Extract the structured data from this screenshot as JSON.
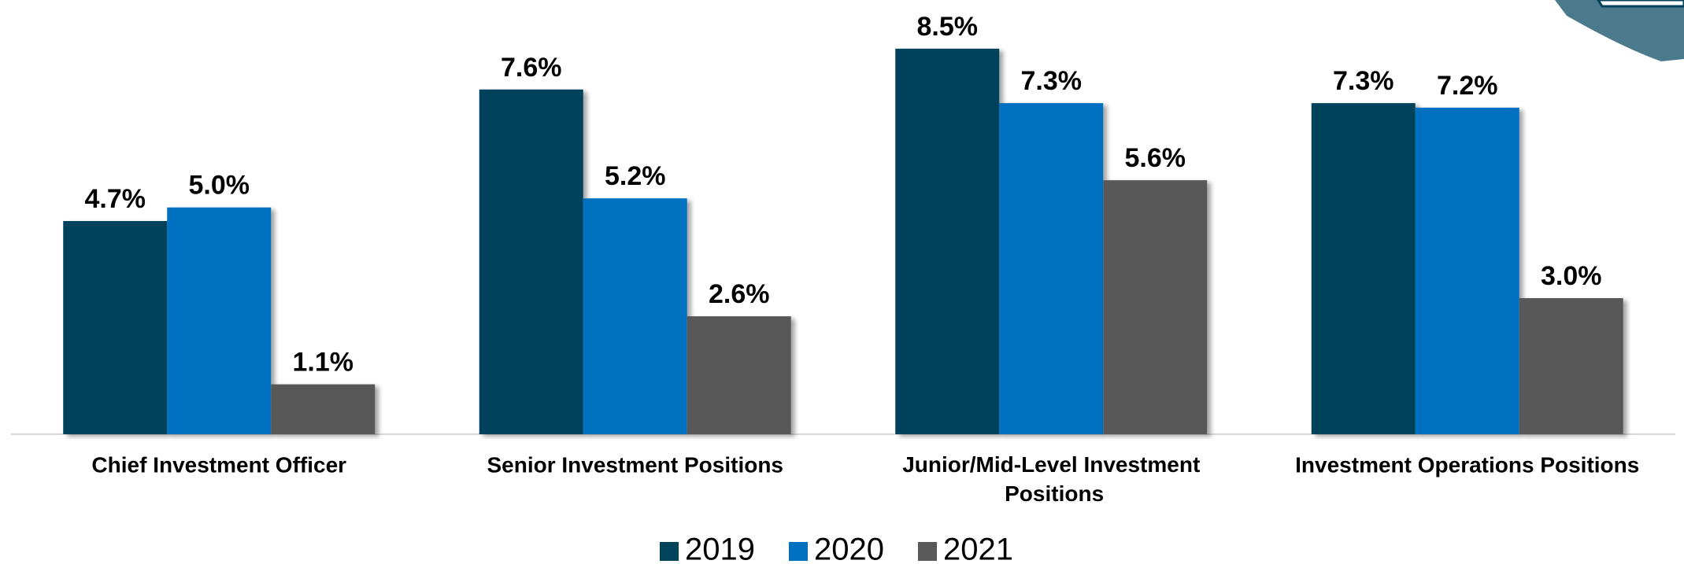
{
  "chart_data": {
    "type": "bar",
    "categories": [
      "Chief Investment Officer",
      "Senior Investment Positions",
      "Junior/Mid-Level Investment Positions",
      "Investment Operations Positions"
    ],
    "series": [
      {
        "name": "2019",
        "color": "#02435c",
        "values": [
          4.7,
          7.6,
          8.5,
          7.3
        ],
        "value_labels": [
          "4.7%",
          "7.6%",
          "8.5%",
          "7.3%"
        ]
      },
      {
        "name": "2020",
        "color": "#0070c0",
        "values": [
          5.0,
          5.2,
          7.3,
          7.2
        ],
        "value_labels": [
          "5.0%",
          "5.2%",
          "7.3%",
          "7.2%"
        ]
      },
      {
        "name": "2021",
        "color": "#595959",
        "values": [
          1.1,
          2.6,
          5.6,
          3.0
        ],
        "value_labels": [
          "1.1%",
          "2.6%",
          "5.6%",
          "3.0%"
        ]
      }
    ],
    "ylim": [
      0,
      9.4
    ],
    "legend": "bottom"
  }
}
